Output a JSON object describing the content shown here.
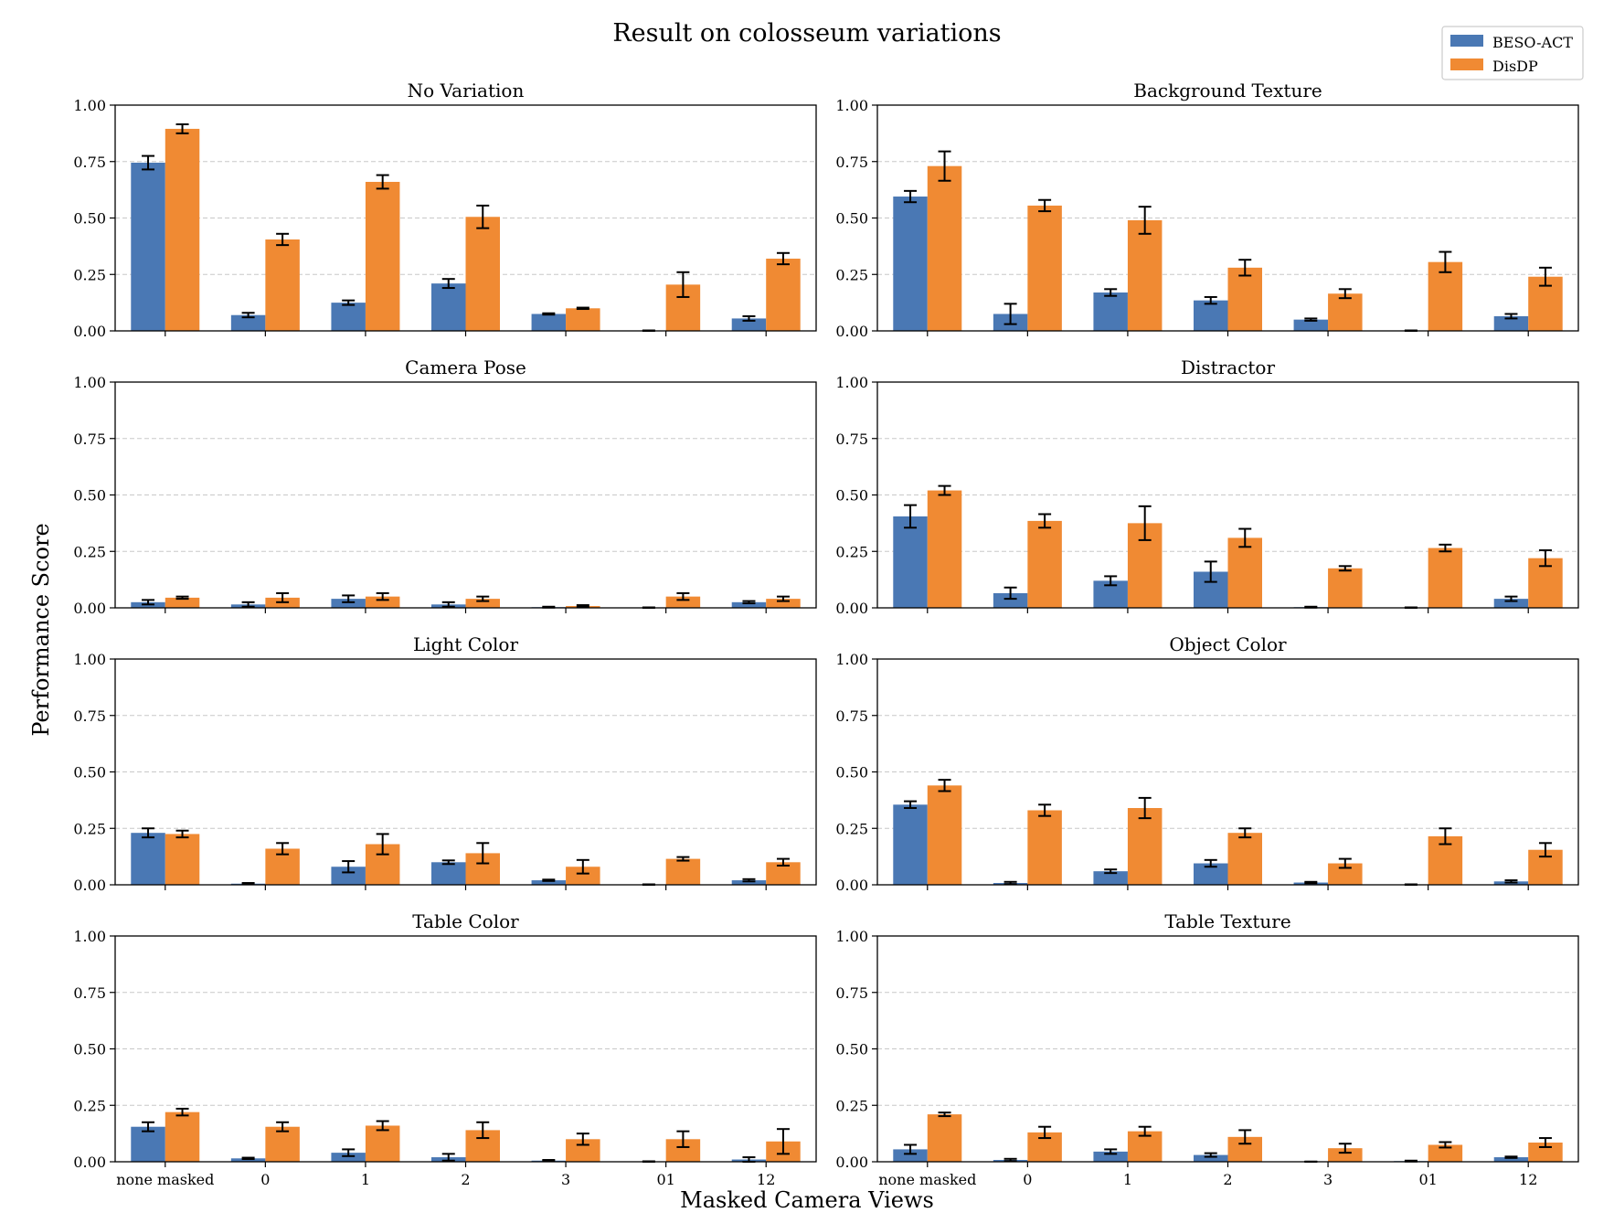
{
  "chart_data": {
    "type": "bar",
    "title": "Result on colosseum variations",
    "xlabel": "Masked Camera Views",
    "ylabel": "Performance Score",
    "ylim": [
      0,
      1
    ],
    "yticks": [
      "0.00",
      "0.25",
      "0.50",
      "0.75",
      "1.00"
    ],
    "categories": [
      "none masked",
      "0",
      "1",
      "2",
      "3",
      "01",
      "12"
    ],
    "grid": "horizontal dashed",
    "legend_position": "top-right",
    "series_names": [
      "BESO-ACT",
      "DisDP"
    ],
    "colors": {
      "BESO-ACT": "#4a78b4",
      "DisDP": "#f08a33"
    },
    "panels": [
      {
        "title": "No Variation",
        "series": [
          {
            "name": "BESO-ACT",
            "values": [
              0.745,
              0.07,
              0.125,
              0.21,
              0.075,
              0.0,
              0.055
            ],
            "errors": [
              0.03,
              0.01,
              0.01,
              0.02,
              0.003,
              0.002,
              0.01
            ]
          },
          {
            "name": "DisDP",
            "values": [
              0.895,
              0.405,
              0.66,
              0.505,
              0.1,
              0.205,
              0.32
            ],
            "errors": [
              0.02,
              0.025,
              0.03,
              0.05,
              0.003,
              0.055,
              0.025
            ]
          }
        ]
      },
      {
        "title": "Background Texture",
        "series": [
          {
            "name": "BESO-ACT",
            "values": [
              0.595,
              0.075,
              0.17,
              0.135,
              0.05,
              0.0,
              0.065
            ],
            "errors": [
              0.025,
              0.045,
              0.015,
              0.015,
              0.005,
              0.002,
              0.01
            ]
          },
          {
            "name": "DisDP",
            "values": [
              0.73,
              0.555,
              0.49,
              0.28,
              0.165,
              0.305,
              0.24
            ],
            "errors": [
              0.065,
              0.025,
              0.06,
              0.035,
              0.02,
              0.045,
              0.04
            ]
          }
        ]
      },
      {
        "title": "Camera Pose",
        "series": [
          {
            "name": "BESO-ACT",
            "values": [
              0.025,
              0.015,
              0.04,
              0.015,
              0.003,
              0.0,
              0.025
            ],
            "errors": [
              0.01,
              0.01,
              0.015,
              0.01,
              0.002,
              0.002,
              0.005
            ]
          },
          {
            "name": "DisDP",
            "values": [
              0.045,
              0.045,
              0.05,
              0.04,
              0.008,
              0.05,
              0.04
            ],
            "errors": [
              0.005,
              0.02,
              0.015,
              0.01,
              0.004,
              0.015,
              0.01
            ]
          }
        ]
      },
      {
        "title": "Distractor",
        "series": [
          {
            "name": "BESO-ACT",
            "values": [
              0.405,
              0.065,
              0.12,
              0.16,
              0.003,
              0.0,
              0.04
            ],
            "errors": [
              0.05,
              0.025,
              0.02,
              0.045,
              0.002,
              0.002,
              0.01
            ]
          },
          {
            "name": "DisDP",
            "values": [
              0.52,
              0.385,
              0.375,
              0.31,
              0.175,
              0.265,
              0.22
            ],
            "errors": [
              0.02,
              0.03,
              0.075,
              0.04,
              0.01,
              0.015,
              0.035
            ]
          }
        ]
      },
      {
        "title": "Light Color",
        "series": [
          {
            "name": "BESO-ACT",
            "values": [
              0.23,
              0.005,
              0.08,
              0.1,
              0.02,
              0.0,
              0.02
            ],
            "errors": [
              0.02,
              0.003,
              0.025,
              0.008,
              0.003,
              0.002,
              0.005
            ]
          },
          {
            "name": "DisDP",
            "values": [
              0.225,
              0.16,
              0.18,
              0.14,
              0.08,
              0.115,
              0.1
            ],
            "errors": [
              0.015,
              0.025,
              0.045,
              0.045,
              0.03,
              0.008,
              0.015
            ]
          }
        ]
      },
      {
        "title": "Object Color",
        "series": [
          {
            "name": "BESO-ACT",
            "values": [
              0.355,
              0.008,
              0.06,
              0.095,
              0.01,
              0.0,
              0.015
            ],
            "errors": [
              0.015,
              0.005,
              0.008,
              0.015,
              0.003,
              0.002,
              0.005
            ]
          },
          {
            "name": "DisDP",
            "values": [
              0.44,
              0.33,
              0.34,
              0.23,
              0.095,
              0.215,
              0.155
            ],
            "errors": [
              0.025,
              0.025,
              0.045,
              0.02,
              0.02,
              0.035,
              0.03
            ]
          }
        ]
      },
      {
        "title": "Table Color",
        "series": [
          {
            "name": "BESO-ACT",
            "values": [
              0.155,
              0.015,
              0.04,
              0.02,
              0.005,
              0.0,
              0.01
            ],
            "errors": [
              0.02,
              0.003,
              0.015,
              0.015,
              0.003,
              0.002,
              0.01
            ]
          },
          {
            "name": "DisDP",
            "values": [
              0.22,
              0.155,
              0.16,
              0.14,
              0.1,
              0.1,
              0.09
            ],
            "errors": [
              0.015,
              0.02,
              0.02,
              0.035,
              0.025,
              0.035,
              0.055
            ]
          }
        ]
      },
      {
        "title": "Table Texture",
        "series": [
          {
            "name": "BESO-ACT",
            "values": [
              0.055,
              0.008,
              0.045,
              0.03,
              0.0,
              0.003,
              0.02
            ],
            "errors": [
              0.02,
              0.005,
              0.01,
              0.008,
              0.001,
              0.002,
              0.003
            ]
          },
          {
            "name": "DisDP",
            "values": [
              0.21,
              0.13,
              0.135,
              0.11,
              0.06,
              0.075,
              0.085
            ],
            "errors": [
              0.008,
              0.025,
              0.02,
              0.03,
              0.02,
              0.012,
              0.02
            ]
          }
        ]
      }
    ]
  }
}
